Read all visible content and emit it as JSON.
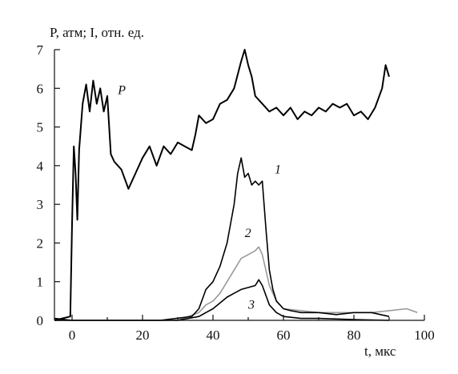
{
  "chart_data": {
    "type": "line",
    "ylabel": "P, атм; I, отн. ед.",
    "xlabel": "t, мкс",
    "xlim": [
      -5,
      100
    ],
    "ylim": [
      0,
      7
    ],
    "xticks": [
      0,
      20,
      40,
      60,
      80,
      100
    ],
    "yticks": [
      0,
      1,
      2,
      3,
      4,
      5,
      6,
      7
    ],
    "grid": false,
    "series": [
      {
        "name": "P",
        "color": "#000000",
        "x": [
          -5,
          -0.5,
          0,
          0.5,
          1,
          1.5,
          2,
          3,
          4,
          5,
          6,
          7,
          8,
          9,
          10,
          11,
          12,
          14,
          16,
          18,
          20,
          22,
          24,
          26,
          28,
          30,
          32,
          34,
          35,
          36,
          38,
          40,
          42,
          44,
          46,
          48,
          49,
          50,
          51,
          52,
          54,
          56,
          58,
          60,
          62,
          64,
          66,
          68,
          70,
          72,
          74,
          76,
          78,
          80,
          82,
          84,
          86,
          88,
          89,
          90
        ],
        "y": [
          0,
          0.1,
          2.5,
          4.5,
          3.8,
          2.6,
          4.4,
          5.6,
          6.1,
          5.4,
          6.2,
          5.6,
          6.0,
          5.4,
          5.8,
          4.3,
          4.1,
          3.9,
          3.4,
          3.8,
          4.2,
          4.5,
          4.0,
          4.5,
          4.3,
          4.6,
          4.5,
          4.4,
          4.8,
          5.3,
          5.1,
          5.2,
          5.6,
          5.7,
          6.0,
          6.7,
          7.0,
          6.6,
          6.3,
          5.8,
          5.6,
          5.4,
          5.5,
          5.3,
          5.5,
          5.2,
          5.4,
          5.3,
          5.5,
          5.4,
          5.6,
          5.5,
          5.6,
          5.3,
          5.4,
          5.2,
          5.5,
          6.0,
          6.6,
          6.3
        ]
      },
      {
        "name": "1",
        "color": "#000000",
        "x": [
          -5,
          0,
          25,
          34,
          36,
          38,
          40,
          42,
          44,
          46,
          47,
          48,
          49,
          50,
          51,
          52,
          53,
          54,
          55,
          56,
          57,
          58,
          60,
          62,
          65,
          70,
          75,
          80,
          85,
          90
        ],
        "y": [
          0.05,
          0,
          0,
          0.1,
          0.3,
          0.8,
          1.0,
          1.4,
          2.0,
          3.0,
          3.8,
          4.2,
          3.7,
          3.8,
          3.5,
          3.6,
          3.5,
          3.6,
          2.4,
          1.3,
          0.8,
          0.5,
          0.3,
          0.25,
          0.2,
          0.2,
          0.15,
          0.2,
          0.2,
          0.1
        ]
      },
      {
        "name": "2",
        "color": "#9a9a9a",
        "x": [
          -5,
          0,
          30,
          36,
          38,
          40,
          42,
          44,
          46,
          48,
          50,
          52,
          53,
          54,
          56,
          58,
          60,
          65,
          70,
          75,
          80,
          85,
          90,
          95,
          98
        ],
        "y": [
          0,
          0,
          0,
          0.2,
          0.4,
          0.5,
          0.7,
          1.0,
          1.3,
          1.6,
          1.7,
          1.8,
          1.9,
          1.7,
          0.9,
          0.5,
          0.3,
          0.25,
          0.2,
          0.2,
          0.2,
          0.2,
          0.25,
          0.3,
          0.2
        ]
      },
      {
        "name": "3",
        "color": "#000000",
        "x": [
          -5,
          0,
          30,
          36,
          38,
          40,
          42,
          44,
          46,
          48,
          50,
          52,
          53,
          54,
          56,
          58,
          60,
          65,
          70,
          80,
          90
        ],
        "y": [
          0,
          0,
          0,
          0.1,
          0.2,
          0.3,
          0.45,
          0.6,
          0.7,
          0.8,
          0.85,
          0.9,
          1.05,
          0.9,
          0.4,
          0.2,
          0.1,
          0.05,
          0.05,
          0.02,
          0
        ]
      }
    ]
  }
}
